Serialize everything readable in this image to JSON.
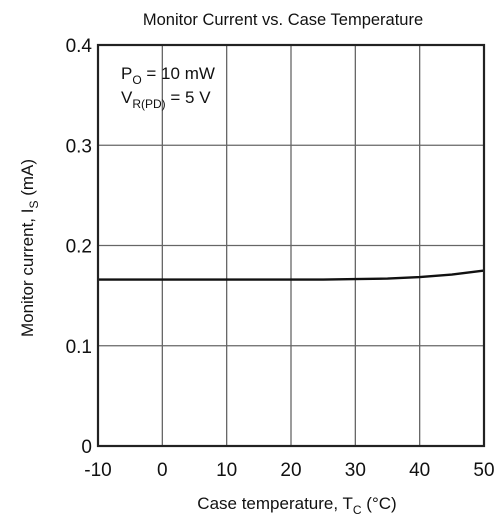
{
  "chart_data": {
    "type": "line",
    "title": "Monitor Current vs. Case Temperature",
    "xlabel": {
      "main": "Case temperature,  T",
      "sub": "C",
      "unit": " (°C)"
    },
    "ylabel": {
      "main": "Monitor current,  I",
      "sub": "S",
      "unit": " (mA)"
    },
    "xlim": [
      -10,
      50
    ],
    "ylim": [
      0,
      0.4
    ],
    "x_ticks": [
      -10,
      0,
      10,
      20,
      30,
      40,
      50
    ],
    "x_tick_labels": [
      "-10",
      "0",
      "10",
      "20",
      "30",
      "40",
      "50"
    ],
    "y_ticks": [
      0,
      0.1,
      0.2,
      0.3,
      0.4
    ],
    "y_tick_labels": [
      "0",
      "0.1",
      "0.2",
      "0.3",
      "0.4"
    ],
    "grid": true,
    "annotations": [
      {
        "main": "P",
        "sub": "O",
        "rest": " = 10 mW"
      },
      {
        "main": "V",
        "sub": "R(PD)",
        "rest": " = 5 V"
      }
    ],
    "series": [
      {
        "x": [
          -10,
          0,
          10,
          20,
          25,
          30,
          35,
          40,
          45,
          50
        ],
        "y": [
          0.166,
          0.166,
          0.166,
          0.166,
          0.166,
          0.1665,
          0.167,
          0.1685,
          0.171,
          0.175
        ]
      }
    ]
  }
}
